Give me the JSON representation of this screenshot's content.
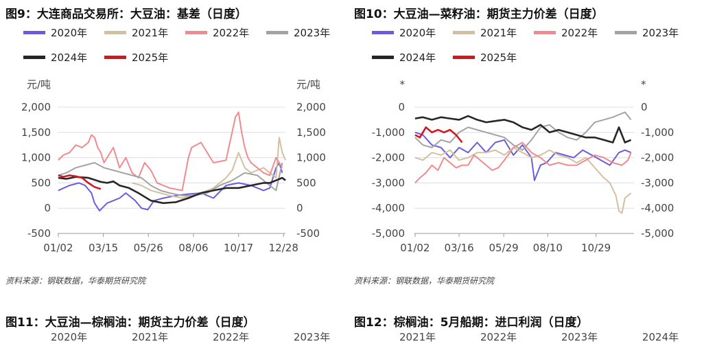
{
  "figures": [
    {
      "title": "图9：大连商品交易所：大豆油：基差（日度）",
      "source": "资料来源：钢联数据，华泰期货研究院",
      "unit_left": "元/吨",
      "unit_right": "元/吨"
    },
    {
      "title": "图10：大豆油—菜籽油：期货主力价差（日度）",
      "source": "资料来源：钢联数据，华泰期货研究院",
      "unit_left": "*",
      "unit_right": "*"
    }
  ],
  "bottom": {
    "left_title": "图11：大豆油—棕榈油：期货主力价差（日度）",
    "right_title": "图12：棕榈油：5月船期：进口利润（日度）",
    "left_legend": [
      "2020年",
      "2021年",
      "2022年",
      "2023年"
    ],
    "right_legend": [
      "2021年",
      "2022年",
      "2023年",
      "2024年"
    ]
  },
  "colors": {
    "2020年": "#6a5ce0",
    "2021年": "#d2c09e",
    "2022年": "#f08a8e",
    "2023年": "#a3a3a3",
    "2024年": "#262626",
    "2025年": "#d0191f"
  },
  "chart_data": [
    {
      "type": "line",
      "title": "图9：大连商品交易所：大豆油：基差（日度）",
      "ylabel": "元/吨",
      "ylim": [
        -500,
        2000
      ],
      "yticks": [
        -500,
        0,
        500,
        1000,
        1500,
        2000
      ],
      "y_tick_labels": [
        "-500",
        "0",
        "500",
        "1,000",
        "1,500",
        "2,000"
      ],
      "x_domain": [
        1,
        365
      ],
      "xticks": [
        {
          "label": "01/02",
          "day": 2
        },
        {
          "label": "03/15",
          "day": 74
        },
        {
          "label": "05/26",
          "day": 146
        },
        {
          "label": "08/06",
          "day": 218
        },
        {
          "label": "10/17",
          "day": 290
        },
        {
          "label": "12/28",
          "day": 362
        }
      ],
      "grid": true,
      "legend_position": "top",
      "series": [
        {
          "name": "2020年",
          "x": [
            2,
            20,
            35,
            45,
            55,
            60,
            68,
            80,
            90,
            100,
            110,
            125,
            135,
            145,
            155,
            170,
            190,
            210,
            230,
            250,
            270,
            290,
            310,
            320,
            330,
            340,
            350,
            355,
            360
          ],
          "y": [
            350,
            450,
            500,
            450,
            300,
            100,
            -50,
            100,
            150,
            200,
            300,
            150,
            0,
            -30,
            150,
            200,
            250,
            280,
            300,
            200,
            450,
            500,
            450,
            400,
            350,
            400,
            800,
            900,
            700
          ]
        },
        {
          "name": "2021年",
          "x": [
            120,
            135,
            150,
            165,
            180,
            200,
            215,
            230,
            250,
            270,
            280,
            290,
            300,
            310,
            320,
            330,
            340,
            350,
            355,
            360,
            365
          ],
          "y": [
            500,
            450,
            350,
            300,
            250,
            200,
            250,
            300,
            400,
            600,
            750,
            1100,
            800,
            700,
            750,
            800,
            700,
            600,
            1400,
            1100,
            950
          ]
        },
        {
          "name": "2022年",
          "x": [
            2,
            10,
            20,
            30,
            40,
            50,
            55,
            60,
            65,
            70,
            75,
            80,
            90,
            100,
            110,
            120,
            130,
            140,
            150,
            160,
            180,
            200,
            210,
            215,
            230,
            250,
            270,
            285,
            290,
            295,
            300,
            305,
            310,
            320,
            330,
            340,
            350,
            360
          ],
          "y": [
            950,
            1050,
            1100,
            1250,
            1200,
            1300,
            1450,
            1400,
            1200,
            1100,
            900,
            1000,
            1200,
            800,
            1000,
            700,
            600,
            900,
            750,
            500,
            400,
            350,
            1000,
            1200,
            1300,
            900,
            950,
            1800,
            1900,
            1500,
            1200,
            1000,
            900,
            800,
            700,
            650,
            1000,
            800
          ]
        },
        {
          "name": "2023年",
          "x": [
            2,
            15,
            30,
            45,
            60,
            75,
            90,
            105,
            120,
            135,
            150,
            165,
            180,
            200,
            220,
            240,
            260,
            280,
            300,
            320,
            340,
            350,
            360
          ],
          "y": [
            650,
            700,
            800,
            850,
            900,
            800,
            750,
            700,
            650,
            600,
            450,
            350,
            300,
            250,
            250,
            300,
            450,
            550,
            700,
            650,
            450,
            350,
            900
          ]
        },
        {
          "name": "2024年",
          "x": [
            2,
            15,
            30,
            50,
            70,
            80,
            90,
            100,
            115,
            130,
            150,
            170,
            190,
            210,
            230,
            250,
            270,
            290,
            310,
            330,
            340,
            350,
            360,
            365
          ],
          "y": [
            600,
            580,
            620,
            600,
            520,
            500,
            530,
            450,
            400,
            300,
            150,
            100,
            120,
            200,
            300,
            350,
            400,
            400,
            450,
            500,
            500,
            550,
            600,
            550
          ]
        },
        {
          "name": "2025年",
          "x": [
            2,
            10,
            20,
            30,
            40,
            50,
            60,
            65,
            70
          ],
          "y": [
            650,
            620,
            650,
            630,
            600,
            500,
            420,
            400,
            380
          ]
        }
      ]
    },
    {
      "type": "line",
      "title": "图10：大豆油—菜籽油：期货主力价差（日度）",
      "ylabel": "*",
      "ylim": [
        -5000,
        0
      ],
      "yticks": [
        -5000,
        -4000,
        -3000,
        -2000,
        -1000,
        0
      ],
      "y_tick_labels": [
        "-5,000",
        "-4,000",
        "-3,000",
        "-2,000",
        "-1,000",
        "0"
      ],
      "x_domain": [
        1,
        365
      ],
      "xticks": [
        {
          "label": "01/02",
          "day": 2
        },
        {
          "label": "03/16",
          "day": 75
        },
        {
          "label": "05/29",
          "day": 149
        },
        {
          "label": "08/10",
          "day": 222
        },
        {
          "label": "10/29",
          "day": 302
        }
      ],
      "grid": true,
      "legend_position": "top",
      "series": [
        {
          "name": "2020年",
          "x": [
            2,
            15,
            30,
            45,
            60,
            75,
            90,
            105,
            120,
            135,
            150,
            165,
            180,
            195,
            200,
            210,
            220,
            235,
            250,
            265,
            280,
            295,
            310,
            325,
            340,
            350,
            360
          ],
          "y": [
            -1000,
            -1100,
            -1500,
            -1600,
            -2000,
            -1600,
            -1800,
            -1400,
            -1800,
            -1400,
            -1300,
            -1900,
            -1500,
            -2000,
            -2900,
            -2300,
            -2200,
            -1800,
            -1900,
            -2000,
            -1700,
            -1900,
            -2100,
            -2300,
            -1800,
            -1700,
            -1800
          ]
        },
        {
          "name": "2021年",
          "x": [
            2,
            15,
            30,
            45,
            60,
            75,
            90,
            105,
            120,
            135,
            150,
            165,
            180,
            195,
            210,
            225,
            240,
            255,
            270,
            285,
            300,
            315,
            325,
            335,
            340,
            345,
            350,
            355,
            360
          ],
          "y": [
            -2000,
            -2100,
            -1800,
            -1900,
            -1700,
            -2100,
            -2000,
            -1800,
            -1800,
            -1700,
            -1900,
            -1600,
            -1800,
            -2000,
            -1900,
            -1700,
            -1900,
            -2000,
            -2200,
            -2000,
            -2400,
            -2800,
            -3000,
            -3500,
            -4100,
            -4200,
            -3600,
            -3500,
            -3400
          ]
        },
        {
          "name": "2022年",
          "x": [
            2,
            10,
            20,
            30,
            40,
            50,
            60,
            70,
            80,
            90,
            100,
            110,
            120,
            130,
            140,
            150,
            165,
            180,
            195,
            210,
            225,
            240,
            255,
            270,
            285,
            300,
            315,
            330,
            345,
            355,
            360
          ],
          "y": [
            -3000,
            -2800,
            -2600,
            -2300,
            -2500,
            -2000,
            -2200,
            -2400,
            -2300,
            -2300,
            -1900,
            -2100,
            -2300,
            -2500,
            -2400,
            -2100,
            -1600,
            -1400,
            -1800,
            -2000,
            -2300,
            -2200,
            -2300,
            -2300,
            -2100,
            -1900,
            -2000,
            -2200,
            -2300,
            -2100,
            -1800
          ]
        },
        {
          "name": "2023年",
          "x": [
            2,
            15,
            30,
            45,
            60,
            75,
            90,
            105,
            120,
            135,
            150,
            165,
            180,
            195,
            210,
            225,
            240,
            255,
            270,
            285,
            300,
            315,
            330,
            340,
            350,
            360
          ],
          "y": [
            -1200,
            -1500,
            -1600,
            -1300,
            -1400,
            -1000,
            -800,
            -900,
            -1000,
            -1100,
            -1200,
            -1500,
            -1700,
            -1300,
            -800,
            -700,
            -1000,
            -1200,
            -1300,
            -1000,
            -600,
            -500,
            -400,
            -300,
            -200,
            -500
          ]
        },
        {
          "name": "2024年",
          "x": [
            2,
            15,
            30,
            45,
            60,
            75,
            90,
            105,
            120,
            135,
            150,
            165,
            180,
            195,
            210,
            225,
            240,
            255,
            270,
            285,
            300,
            315,
            330,
            340,
            350,
            360
          ],
          "y": [
            -450,
            -400,
            -500,
            -400,
            -450,
            -500,
            -350,
            -500,
            -600,
            -550,
            -500,
            -600,
            -800,
            -900,
            -700,
            -1000,
            -900,
            -1000,
            -1100,
            -1200,
            -1200,
            -1300,
            -1400,
            -800,
            -1400,
            -1300
          ]
        },
        {
          "name": "2025年",
          "x": [
            2,
            10,
            20,
            30,
            40,
            50,
            60,
            70,
            80
          ],
          "y": [
            -1100,
            -1200,
            -800,
            -1000,
            -900,
            -1000,
            -900,
            -1100,
            -1400
          ]
        }
      ]
    }
  ]
}
